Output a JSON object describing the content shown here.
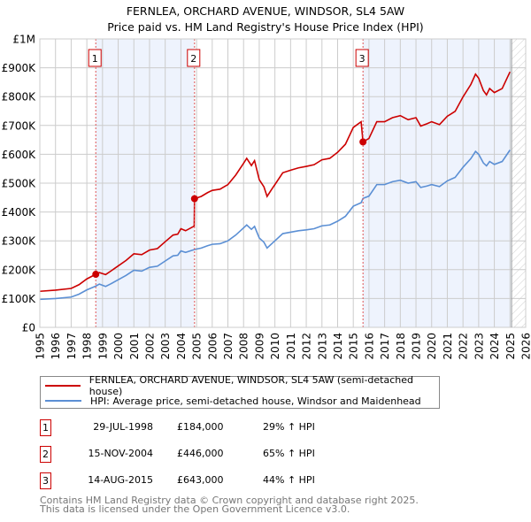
{
  "chart_data": {
    "type": "line",
    "title": "FERNLEA, ORCHARD AVENUE, WINDSOR, SL4 5AW",
    "subtitle": "Price paid vs. HM Land Registry's House Price Index (HPI)",
    "xlim": [
      1995,
      2026
    ],
    "ylim": [
      0,
      1000000
    ],
    "grid": true,
    "y_ticks": [
      {
        "v": 0,
        "label": "£0"
      },
      {
        "v": 100000,
        "label": "£100K"
      },
      {
        "v": 200000,
        "label": "£200K"
      },
      {
        "v": 300000,
        "label": "£300K"
      },
      {
        "v": 400000,
        "label": "£400K"
      },
      {
        "v": 500000,
        "label": "£500K"
      },
      {
        "v": 600000,
        "label": "£600K"
      },
      {
        "v": 700000,
        "label": "£700K"
      },
      {
        "v": 800000,
        "label": "£800K"
      },
      {
        "v": 900000,
        "label": "£900K"
      },
      {
        "v": 1000000,
        "label": "£1M"
      }
    ],
    "x_ticks": [
      "1995",
      "1996",
      "1997",
      "1998",
      "1999",
      "2000",
      "2001",
      "2002",
      "2003",
      "2004",
      "2005",
      "2006",
      "2007",
      "2008",
      "2009",
      "2010",
      "2011",
      "2012",
      "2013",
      "2014",
      "2015",
      "2016",
      "2017",
      "2018",
      "2019",
      "2020",
      "2021",
      "2022",
      "2023",
      "2024",
      "2025",
      "2026"
    ],
    "series": [
      {
        "name": "FERNLEA, ORCHARD AVENUE, WINDSOR, SL4 5AW (semi-detached house)",
        "color": "#cc0000",
        "x": [
          1995,
          1996,
          1997,
          1997.5,
          1998,
          1998.57,
          1998.8,
          1999.2,
          1999.5,
          2000,
          2000.5,
          2001,
          2001.5,
          2002,
          2002.5,
          2003,
          2003.5,
          2003.8,
          2004,
          2004.3,
          2004.85,
          2004.87,
          2005.3,
          2005.7,
          2006,
          2006.5,
          2007,
          2007.5,
          2008,
          2008.2,
          2008.5,
          2008.7,
          2009,
          2009.3,
          2009.5,
          2009.8,
          2010,
          2010.5,
          2011,
          2011.5,
          2012,
          2012.5,
          2013,
          2013.5,
          2014,
          2014.5,
          2015,
          2015.5,
          2015.62,
          2016,
          2016.5,
          2017,
          2017.5,
          2018,
          2018.5,
          2019,
          2019.3,
          2019.7,
          2020,
          2020.5,
          2021,
          2021.5,
          2022,
          2022.5,
          2022.8,
          2023,
          2023.3,
          2023.5,
          2023.7,
          2024,
          2024.5,
          2025
        ],
        "values": [
          125000,
          129000,
          135000,
          148000,
          168000,
          184000,
          190000,
          183000,
          194000,
          213000,
          232000,
          255000,
          252000,
          268000,
          273000,
          297000,
          320000,
          323000,
          342000,
          335000,
          351000,
          446000,
          454000,
          467000,
          475000,
          479000,
          495000,
          528000,
          569000,
          586000,
          561000,
          578000,
          512000,
          487000,
          454000,
          479000,
          495000,
          536000,
          545000,
          553000,
          558000,
          564000,
          581000,
          586000,
          607000,
          635000,
          693000,
          713000,
          643000,
          655000,
          713000,
          713000,
          727000,
          734000,
          720000,
          727000,
          698000,
          706000,
          713000,
          703000,
          732000,
          749000,
          799000,
          842000,
          878000,
          864000,
          821000,
          806000,
          828000,
          814000,
          828000,
          886000
        ]
      },
      {
        "name": "HPI: Average price, semi-detached house, Windsor and Maidenhead",
        "color": "#5b8fd4",
        "x": [
          1995,
          1996,
          1997,
          1997.5,
          1998,
          1998.57,
          1998.8,
          1999.2,
          1999.5,
          2000,
          2000.5,
          2001,
          2001.5,
          2002,
          2002.5,
          2003,
          2003.5,
          2003.8,
          2004,
          2004.3,
          2004.87,
          2005.3,
          2005.7,
          2006,
          2006.5,
          2007,
          2007.5,
          2008,
          2008.2,
          2008.5,
          2008.7,
          2009,
          2009.3,
          2009.5,
          2009.8,
          2010,
          2010.5,
          2011,
          2011.5,
          2012,
          2012.5,
          2013,
          2013.5,
          2014,
          2014.5,
          2015,
          2015.5,
          2015.62,
          2016,
          2016.5,
          2017,
          2017.5,
          2018,
          2018.5,
          2019,
          2019.3,
          2019.7,
          2020,
          2020.5,
          2021,
          2021.5,
          2022,
          2022.5,
          2022.8,
          2023,
          2023.3,
          2023.5,
          2023.7,
          2024,
          2024.5,
          2025
        ],
        "values": [
          97000,
          100000,
          105000,
          115000,
          130000,
          143000,
          150000,
          142000,
          150000,
          165000,
          180000,
          198000,
          195000,
          208000,
          212000,
          230000,
          248000,
          250000,
          265000,
          260000,
          270000,
          275000,
          283000,
          288000,
          290000,
          300000,
          320000,
          345000,
          355000,
          340000,
          350000,
          310000,
          295000,
          275000,
          290000,
          300000,
          325000,
          330000,
          335000,
          338000,
          342000,
          352000,
          355000,
          368000,
          385000,
          420000,
          432000,
          447000,
          455000,
          495000,
          495000,
          505000,
          510000,
          500000,
          505000,
          485000,
          490000,
          495000,
          488000,
          508000,
          520000,
          555000,
          585000,
          610000,
          600000,
          570000,
          560000,
          575000,
          565000,
          575000,
          615000
        ]
      }
    ],
    "sales": [
      {
        "label": "1",
        "x": 1998.57,
        "date": "29-JUL-1998",
        "value": 184000,
        "price": "£184,000",
        "hpi": "29% ↑ HPI"
      },
      {
        "label": "2",
        "x": 2004.87,
        "date": "15-NOV-2004",
        "value": 446000,
        "price": "£446,000",
        "hpi": "65% ↑ HPI"
      },
      {
        "label": "3",
        "x": 2015.62,
        "date": "14-AUG-2015",
        "value": 643000,
        "price": "£643,000",
        "hpi": "44% ↑ HPI"
      }
    ],
    "shaded_ranges": [
      [
        1998.57,
        2004.87
      ],
      [
        2015.62,
        2025.1
      ]
    ],
    "forecast_hatch_from": 2025.1,
    "legend_placement": "below"
  },
  "footer": {
    "line1": "Contains HM Land Registry data © Crown copyright and database right 2025.",
    "line2": "This data is licensed under the Open Government Licence v3.0."
  }
}
